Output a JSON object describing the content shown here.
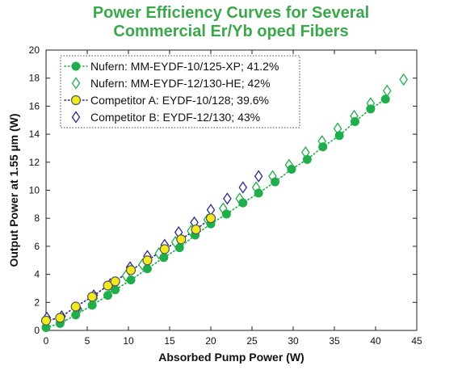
{
  "chart_data": {
    "type": "scatter",
    "title_line1": "Power Efficiency Curves for Several",
    "title_line2": "Commercial Er/Yb oped Fibers",
    "xlabel": "Absorbed Pump Power (W)",
    "ylabel": "Output Power at 1.55 µm (W)",
    "xlim": [
      0,
      45
    ],
    "ylim": [
      0,
      20
    ],
    "xticks": [
      "0",
      "5",
      "10",
      "15",
      "20",
      "25",
      "30",
      "35",
      "40",
      "45"
    ],
    "yticks": [
      "0",
      "2",
      "4",
      "6",
      "8",
      "10",
      "12",
      "14",
      "16",
      "18",
      "20"
    ],
    "legend_position": "top-left",
    "series": [
      {
        "name": "Nufern: MM-EYDF-10/125-XP; 41.2%",
        "marker": "filled-circle",
        "line": "dotted",
        "color": "#1fae4b",
        "x": [
          0,
          1.7,
          3.6,
          5.6,
          7.5,
          8.4,
          10.3,
          12.3,
          14.3,
          16.2,
          18.1,
          20.0,
          21.9,
          23.9,
          25.8,
          27.8,
          29.8,
          31.7,
          33.6,
          35.6,
          37.5,
          39.4,
          41.2
        ],
        "y": [
          0.2,
          0.5,
          1.1,
          1.8,
          2.5,
          2.9,
          3.6,
          4.4,
          5.2,
          5.9,
          6.8,
          7.6,
          8.3,
          9.1,
          9.8,
          10.6,
          11.5,
          12.2,
          13.1,
          13.9,
          14.9,
          15.8,
          16.5
        ]
      },
      {
        "name": "Nufern: MM-EYDF-12/130-HE; 42%",
        "marker": "open-diamond",
        "line": "none",
        "color": "#1fae4b",
        "x": [
          0,
          1.9,
          3.9,
          5.8,
          7.8,
          9.7,
          11.7,
          13.7,
          15.7,
          17.6,
          19.6,
          21.5,
          23.5,
          25.5,
          27.5,
          29.5,
          31.5,
          33.5,
          35.4,
          37.4,
          39.4,
          41.4,
          43.4
        ],
        "y": [
          0.3,
          0.7,
          1.5,
          2.3,
          3.1,
          3.9,
          4.7,
          5.5,
          6.3,
          7.1,
          7.9,
          8.7,
          9.4,
          10.2,
          11.0,
          11.8,
          12.7,
          13.5,
          14.4,
          15.3,
          16.2,
          17.1,
          17.9
        ]
      },
      {
        "name": "Competitor A: EYDF-10/128; 39.6%",
        "marker": "yellow-circle",
        "line": "dotted",
        "color": "#f2ea1e",
        "x": [
          0,
          1.7,
          3.6,
          5.6,
          7.5,
          8.4,
          10.3,
          12.3,
          14.4,
          16.4,
          18.2,
          20.0
        ],
        "y": [
          0.7,
          0.9,
          1.7,
          2.4,
          3.2,
          3.5,
          4.3,
          5.0,
          5.8,
          6.5,
          7.2,
          8.0
        ]
      },
      {
        "name": "Competitor B: EYDF-12/130; 43%",
        "marker": "open-diamond",
        "line": "none",
        "color": "#2b2a8a",
        "x": [
          0.1,
          1.9,
          3.8,
          5.8,
          7.8,
          10.2,
          12.3,
          14.4,
          16.1,
          18.0,
          20.0,
          22.0,
          23.9,
          25.8
        ],
        "y": [
          0.9,
          1.0,
          1.6,
          2.5,
          3.3,
          4.5,
          5.3,
          6.1,
          7.0,
          7.7,
          8.6,
          9.4,
          10.2,
          11.0
        ]
      }
    ]
  }
}
